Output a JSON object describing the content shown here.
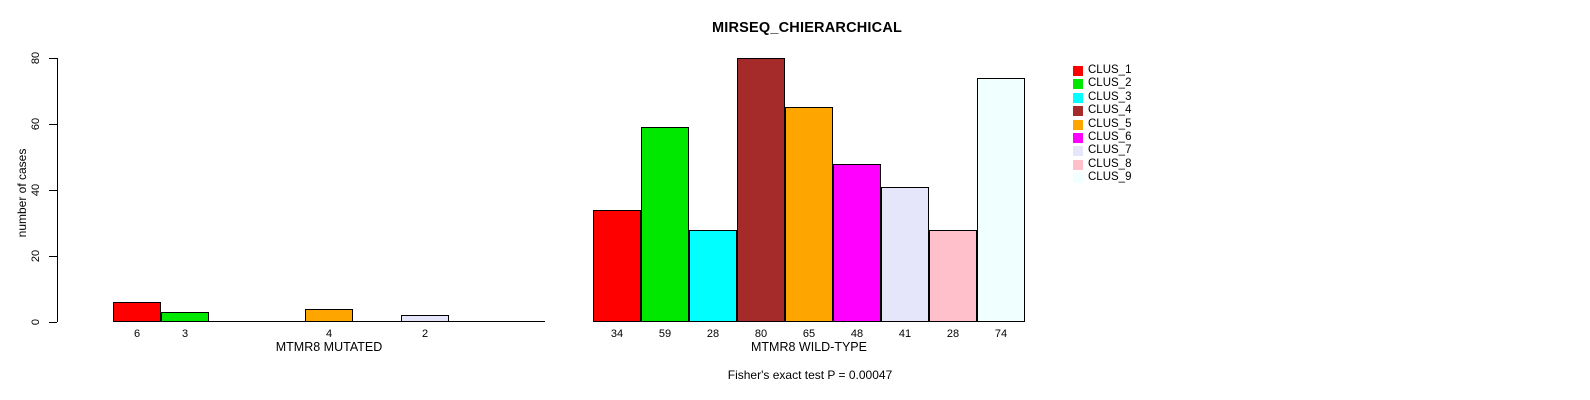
{
  "chart_data": {
    "type": "bar",
    "title": "MIRSEQ_CHIERARCHICAL",
    "ylabel": "number of cases",
    "ylim": [
      0,
      80
    ],
    "yticks": [
      0,
      20,
      40,
      60,
      80
    ],
    "grid": false,
    "legend_position": "right",
    "categories": [
      "CLUS_1",
      "CLUS_2",
      "CLUS_3",
      "CLUS_4",
      "CLUS_5",
      "CLUS_6",
      "CLUS_7",
      "CLUS_8",
      "CLUS_9"
    ],
    "colors": [
      "#FF0000",
      "#00E800",
      "#00FFFF",
      "#A52A2A",
      "#FFA500",
      "#FF00FF",
      "#E6E6FA",
      "#FFC0CB",
      "#F0FFFF"
    ],
    "groups": [
      {
        "name": "MTMR8 MUTATED",
        "values": [
          6,
          3,
          0,
          0,
          4,
          0,
          2,
          0,
          0
        ]
      },
      {
        "name": "MTMR8 WILD-TYPE",
        "values": [
          34,
          59,
          28,
          80,
          65,
          48,
          41,
          28,
          74
        ]
      }
    ],
    "annotation": "Fisher's exact test P = 0.00047"
  }
}
